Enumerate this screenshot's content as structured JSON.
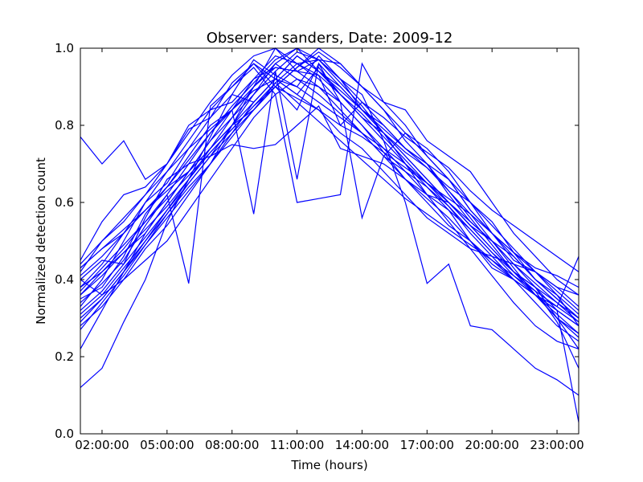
{
  "chart_data": {
    "type": "line",
    "title": "Observer: sanders, Date: 2009-12",
    "xlabel": "Time (hours)",
    "ylabel": "Normalized detection count",
    "x_tick_labels": [
      "02:00:00",
      "05:00:00",
      "08:00:00",
      "11:00:00",
      "14:00:00",
      "17:00:00",
      "20:00:00",
      "23:00:00"
    ],
    "x_tick_hours": [
      2,
      5,
      8,
      11,
      14,
      17,
      20,
      23
    ],
    "xlim_hours": [
      1,
      24
    ],
    "ylim": [
      0.0,
      1.0
    ],
    "y_ticks": [
      "0.0",
      "0.2",
      "0.4",
      "0.6",
      "0.8",
      "1.0"
    ],
    "grid": false,
    "legend": "none",
    "line_color": "#0000ff",
    "x_hours": [
      1,
      2,
      3,
      4,
      5,
      6,
      7,
      8,
      9,
      10,
      11,
      12,
      13,
      14,
      15,
      16,
      17,
      18,
      19,
      20,
      21,
      22,
      23,
      24
    ],
    "series": [
      {
        "values": [
          0.77,
          0.7,
          0.76,
          0.66,
          0.7,
          0.79,
          0.82,
          0.91,
          0.96,
          0.92,
          0.88,
          0.95,
          0.88,
          0.82,
          0.78,
          0.73,
          0.69,
          0.64,
          0.6,
          0.55,
          0.47,
          0.43,
          0.41,
          0.38
        ]
      },
      {
        "values": [
          0.42,
          0.5,
          0.55,
          0.62,
          0.7,
          0.78,
          0.86,
          0.93,
          0.98,
          1.0,
          0.96,
          0.97,
          0.92,
          0.86,
          0.8,
          0.74,
          0.7,
          0.63,
          0.56,
          0.49,
          0.42,
          0.36,
          0.32,
          0.28
        ]
      },
      {
        "values": [
          0.38,
          0.44,
          0.52,
          0.6,
          0.68,
          0.76,
          0.84,
          0.9,
          0.95,
          0.88,
          0.6,
          0.61,
          0.62,
          0.96,
          0.86,
          0.8,
          0.72,
          0.66,
          0.58,
          0.52,
          0.47,
          0.4,
          0.35,
          0.3
        ]
      },
      {
        "values": [
          0.12,
          0.17,
          0.29,
          0.4,
          0.55,
          0.66,
          0.77,
          0.88,
          0.97,
          0.93,
          0.9,
          0.98,
          0.92,
          0.88,
          0.76,
          0.6,
          0.39,
          0.44,
          0.28,
          0.27,
          0.22,
          0.17,
          0.14,
          0.1
        ]
      },
      {
        "values": [
          0.45,
          0.55,
          0.62,
          0.64,
          0.7,
          0.8,
          0.84,
          0.86,
          0.92,
          0.95,
          0.94,
          0.97,
          0.96,
          0.9,
          0.86,
          0.84,
          0.76,
          0.72,
          0.68,
          0.6,
          0.52,
          0.46,
          0.4,
          0.36
        ]
      },
      {
        "values": [
          0.3,
          0.35,
          0.42,
          0.5,
          0.58,
          0.66,
          0.74,
          0.82,
          0.88,
          0.94,
          0.99,
          0.97,
          0.92,
          0.84,
          0.78,
          0.7,
          0.62,
          0.55,
          0.48,
          0.41,
          0.34,
          0.28,
          0.24,
          0.22
        ]
      },
      {
        "values": [
          0.4,
          0.45,
          0.44,
          0.56,
          0.66,
          0.7,
          0.72,
          0.75,
          0.74,
          0.75,
          0.8,
          0.85,
          0.74,
          0.72,
          0.7,
          0.66,
          0.62,
          0.6,
          0.54,
          0.48,
          0.42,
          0.38,
          0.34,
          0.3
        ]
      },
      {
        "values": [
          0.35,
          0.38,
          0.46,
          0.57,
          0.64,
          0.72,
          0.8,
          0.84,
          0.57,
          0.94,
          0.66,
          0.96,
          0.86,
          0.56,
          0.72,
          0.78,
          0.74,
          0.68,
          0.6,
          0.52,
          0.45,
          0.42,
          0.38,
          0.33
        ]
      },
      {
        "values": [
          0.28,
          0.33,
          0.4,
          0.48,
          0.54,
          0.62,
          0.7,
          0.8,
          0.9,
          1.0,
          0.94,
          0.9,
          0.86,
          0.8,
          0.74,
          0.68,
          0.62,
          0.58,
          0.5,
          0.43,
          0.4,
          0.36,
          0.32,
          0.28
        ]
      },
      {
        "values": [
          0.33,
          0.4,
          0.5,
          0.6,
          0.65,
          0.74,
          0.82,
          0.88,
          0.86,
          0.92,
          0.98,
          0.94,
          0.9,
          0.84,
          0.8,
          0.74,
          0.7,
          0.66,
          0.58,
          0.52,
          0.46,
          0.4,
          0.36,
          0.31
        ]
      },
      {
        "values": [
          0.43,
          0.48,
          0.52,
          0.58,
          0.64,
          0.68,
          0.74,
          0.8,
          0.84,
          0.9,
          0.95,
          1.0,
          0.96,
          0.9,
          0.84,
          0.76,
          0.7,
          0.62,
          0.55,
          0.5,
          0.44,
          0.39,
          0.34,
          0.29
        ]
      },
      {
        "values": [
          0.36,
          0.42,
          0.48,
          0.55,
          0.62,
          0.7,
          0.78,
          0.84,
          0.9,
          0.95,
          0.94,
          0.93,
          0.8,
          0.86,
          0.82,
          0.77,
          0.73,
          0.69,
          0.63,
          0.58,
          0.54,
          0.5,
          0.46,
          0.42
        ]
      },
      {
        "values": [
          0.22,
          0.32,
          0.42,
          0.52,
          0.6,
          0.68,
          0.76,
          0.84,
          0.92,
          0.98,
          0.96,
          0.92,
          0.86,
          0.8,
          0.73,
          0.66,
          0.6,
          0.54,
          0.5,
          0.44,
          0.4,
          0.36,
          0.3,
          0.25
        ]
      },
      {
        "values": [
          0.4,
          0.36,
          0.4,
          0.45,
          0.5,
          0.58,
          0.66,
          0.74,
          0.82,
          0.88,
          0.92,
          0.9,
          0.84,
          0.78,
          0.72,
          0.68,
          0.64,
          0.58,
          0.53,
          0.47,
          0.41,
          0.36,
          0.31,
          0.26
        ]
      },
      {
        "values": [
          0.34,
          0.39,
          0.45,
          0.54,
          0.62,
          0.39,
          0.85,
          0.9,
          0.96,
          0.9,
          0.84,
          0.96,
          0.9,
          0.84,
          0.78,
          0.72,
          0.66,
          0.6,
          0.54,
          0.5,
          0.46,
          0.4,
          0.35,
          0.3
        ]
      },
      {
        "values": [
          0.31,
          0.36,
          0.43,
          0.5,
          0.57,
          0.64,
          0.7,
          0.78,
          0.86,
          0.92,
          0.88,
          0.84,
          0.78,
          0.74,
          0.68,
          0.62,
          0.56,
          0.52,
          0.48,
          0.46,
          0.44,
          0.42,
          0.38,
          0.36
        ]
      },
      {
        "values": [
          0.38,
          0.42,
          0.47,
          0.52,
          0.6,
          0.68,
          0.76,
          0.82,
          0.9,
          0.96,
          1.0,
          0.94,
          0.88,
          0.82,
          0.76,
          0.7,
          0.64,
          0.59,
          0.52,
          0.46,
          0.4,
          0.34,
          0.28,
          0.24
        ]
      },
      {
        "values": [
          0.44,
          0.5,
          0.56,
          0.62,
          0.68,
          0.74,
          0.79,
          0.84,
          0.89,
          0.92,
          0.9,
          0.86,
          0.82,
          0.78,
          0.74,
          0.7,
          0.65,
          0.6,
          0.55,
          0.5,
          0.44,
          0.38,
          0.32,
          0.03
        ]
      },
      {
        "values": [
          0.27,
          0.34,
          0.41,
          0.49,
          0.57,
          0.65,
          0.72,
          0.8,
          0.88,
          0.96,
          0.92,
          0.88,
          0.83,
          0.78,
          0.72,
          0.66,
          0.61,
          0.56,
          0.5,
          0.45,
          0.4,
          0.36,
          0.33,
          0.46
        ]
      },
      {
        "values": [
          0.36,
          0.41,
          0.47,
          0.53,
          0.59,
          0.66,
          0.73,
          0.79,
          0.85,
          0.9,
          0.87,
          0.84,
          0.8,
          0.77,
          0.73,
          0.69,
          0.65,
          0.61,
          0.57,
          0.52,
          0.47,
          0.42,
          0.37,
          0.32
        ]
      },
      {
        "values": [
          0.32,
          0.37,
          0.44,
          0.51,
          0.58,
          0.65,
          0.72,
          0.78,
          0.84,
          0.9,
          0.95,
          0.99,
          0.95,
          0.9,
          0.84,
          0.78,
          0.72,
          0.66,
          0.6,
          0.54,
          0.48,
          0.42,
          0.36,
          0.28
        ]
      },
      {
        "values": [
          0.41,
          0.46,
          0.52,
          0.58,
          0.64,
          0.71,
          0.78,
          0.85,
          0.91,
          0.97,
          1.0,
          0.97,
          0.91,
          0.85,
          0.78,
          0.72,
          0.66,
          0.6,
          0.54,
          0.48,
          0.42,
          0.37,
          0.33,
          0.29
        ]
      },
      {
        "values": [
          0.29,
          0.35,
          0.42,
          0.49,
          0.56,
          0.63,
          0.7,
          0.77,
          0.84,
          0.91,
          0.96,
          0.93,
          0.88,
          0.83,
          0.77,
          0.71,
          0.65,
          0.59,
          0.53,
          0.47,
          0.42,
          0.38,
          0.3,
          0.22
        ]
      },
      {
        "values": [
          0.37,
          0.43,
          0.49,
          0.55,
          0.61,
          0.67,
          0.73,
          0.79,
          0.85,
          0.91,
          0.86,
          0.81,
          0.76,
          0.71,
          0.66,
          0.61,
          0.57,
          0.53,
          0.49,
          0.45,
          0.41,
          0.37,
          0.29,
          0.17
        ]
      },
      {
        "values": [
          0.43,
          0.48,
          0.53,
          0.58,
          0.63,
          0.68,
          0.74,
          0.8,
          0.86,
          0.92,
          0.98,
          0.94,
          0.89,
          0.84,
          0.79,
          0.74,
          0.69,
          0.63,
          0.57,
          0.5,
          0.43,
          0.36,
          0.3,
          0.26
        ]
      }
    ]
  }
}
